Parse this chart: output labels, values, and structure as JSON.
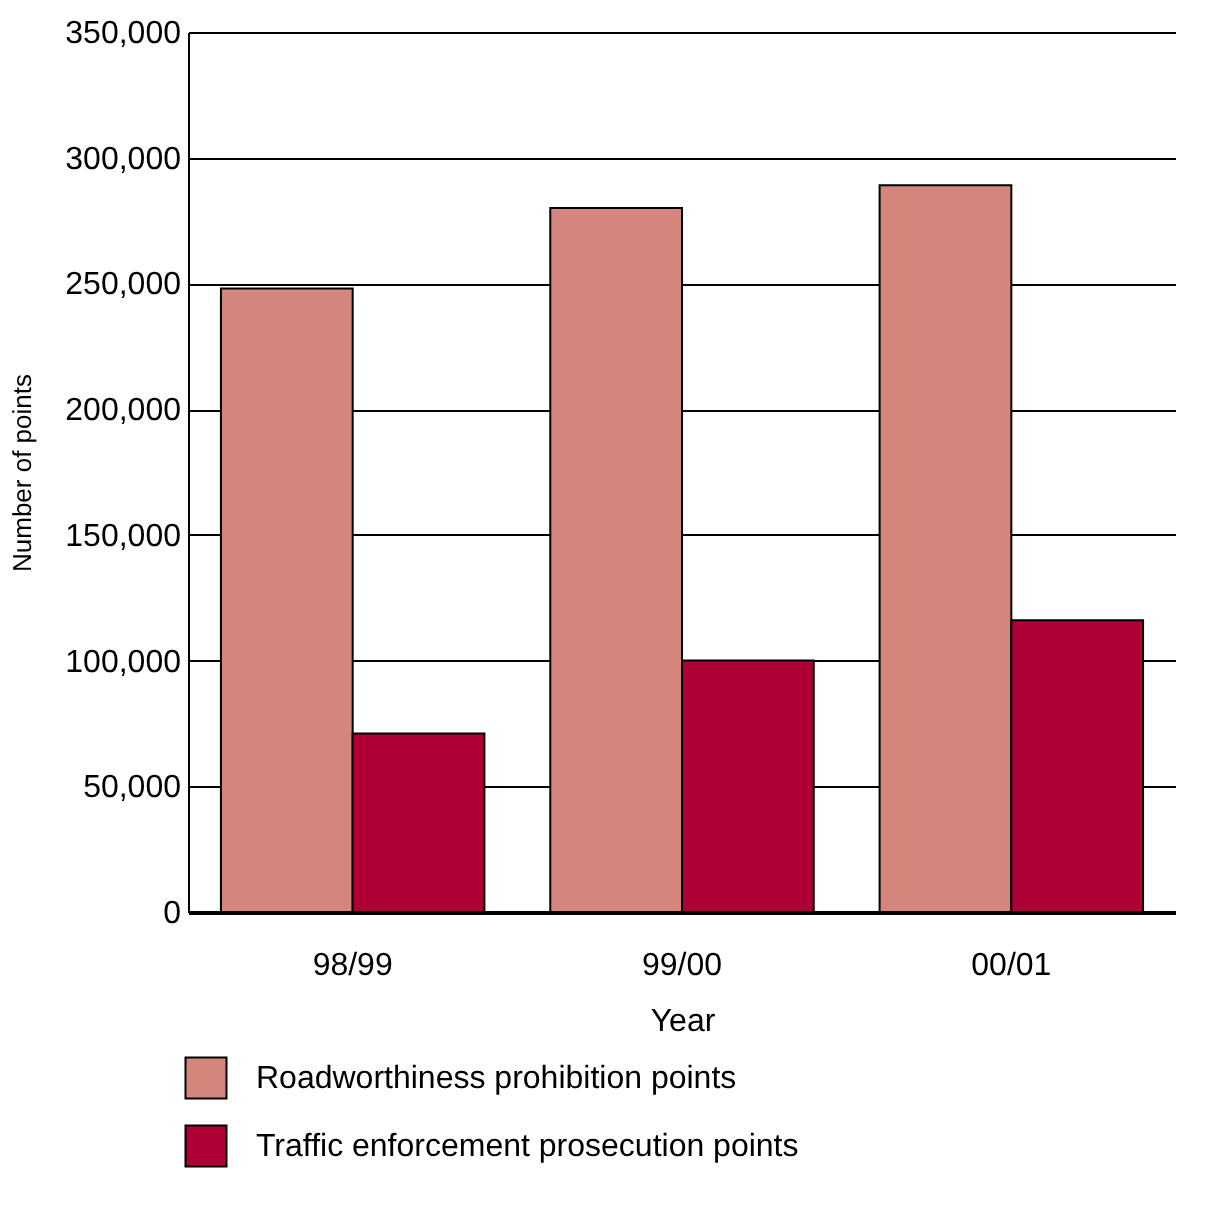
{
  "chart_data": {
    "type": "bar",
    "xlabel": "Year",
    "ylabel": "Number of points",
    "categories": [
      "98/99",
      "99/00",
      "00/01"
    ],
    "series": [
      {
        "name": "Roadworthiness prohibition points",
        "color": "#d4857c",
        "values": [
          248000,
          280000,
          289000
        ]
      },
      {
        "name": "Traffic enforcement prosecution points",
        "color": "#ae0035",
        "values": [
          71000,
          100000,
          116000
        ]
      }
    ],
    "ylim": [
      0,
      350000
    ],
    "yticks": [
      {
        "value": 0,
        "label": "0"
      },
      {
        "value": 50000,
        "label": "50,000"
      },
      {
        "value": 100000,
        "label": "100,000"
      },
      {
        "value": 150000,
        "label": "150,000"
      },
      {
        "value": 200000,
        "label": "200,000"
      },
      {
        "value": 250000,
        "label": "250,000"
      },
      {
        "value": 300000,
        "label": "300,000"
      },
      {
        "value": 350000,
        "label": "350,000"
      }
    ],
    "grid": "y",
    "legend": "bottom"
  }
}
